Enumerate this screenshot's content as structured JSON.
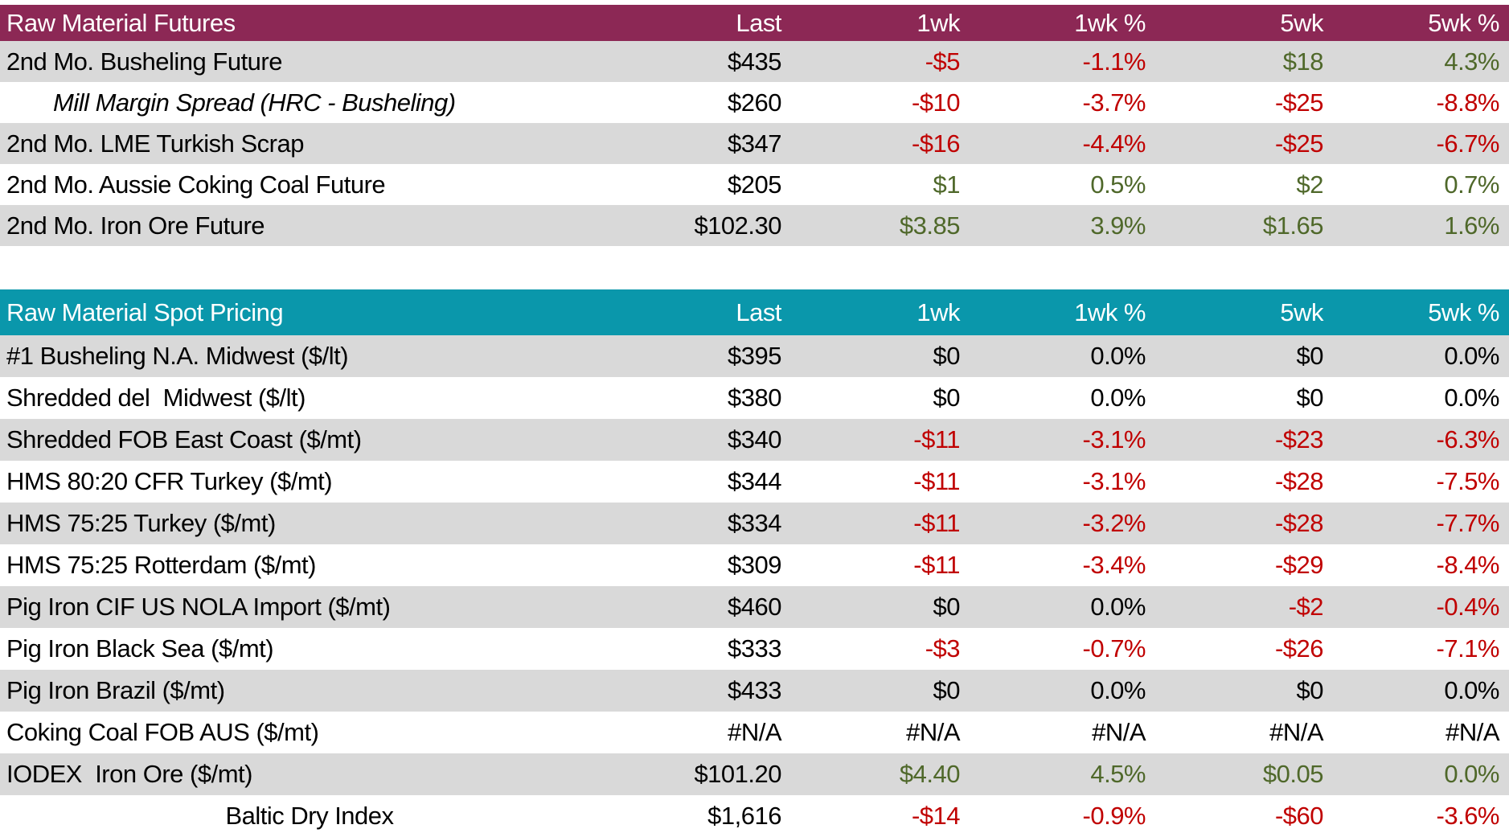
{
  "palette": {
    "futures_header_bg": "#8C2855",
    "spot_header_bg": "#0A97AB",
    "header_text": "#FFFFFF",
    "row_alt_bg": "#D9D9D9",
    "row_bg": "#FFFFFF",
    "negative": "#C00000",
    "positive": "#4F682A",
    "neutral": "#000000"
  },
  "columns": [
    "Last",
    "1wk",
    "1wk %",
    "5wk",
    "5wk %"
  ],
  "tables": [
    {
      "title": "Raw Material Futures",
      "header_bg": "#8C2855",
      "rows": [
        {
          "label": "2nd Mo. Busheling Future",
          "cells": [
            {
              "text": "$435",
              "color": "neutral"
            },
            {
              "text": "-$5",
              "color": "negative"
            },
            {
              "text": "-1.1%",
              "color": "negative"
            },
            {
              "text": "$18",
              "color": "positive"
            },
            {
              "text": "4.3%",
              "color": "positive"
            }
          ]
        },
        {
          "label": "Mill Margin Spread (HRC - Busheling)",
          "style": "italic-indent",
          "cells": [
            {
              "text": "$260",
              "color": "neutral"
            },
            {
              "text": "-$10",
              "color": "negative"
            },
            {
              "text": "-3.7%",
              "color": "negative"
            },
            {
              "text": "-$25",
              "color": "negative"
            },
            {
              "text": "-8.8%",
              "color": "negative"
            }
          ]
        },
        {
          "label": "2nd Mo. LME Turkish Scrap",
          "cells": [
            {
              "text": "$347",
              "color": "neutral"
            },
            {
              "text": "-$16",
              "color": "negative"
            },
            {
              "text": "-4.4%",
              "color": "negative"
            },
            {
              "text": "-$25",
              "color": "negative"
            },
            {
              "text": "-6.7%",
              "color": "negative"
            }
          ]
        },
        {
          "label": "2nd Mo. Aussie Coking Coal Future",
          "cells": [
            {
              "text": "$205",
              "color": "neutral"
            },
            {
              "text": "$1",
              "color": "positive"
            },
            {
              "text": "0.5%",
              "color": "positive"
            },
            {
              "text": "$2",
              "color": "positive"
            },
            {
              "text": "0.7%",
              "color": "positive"
            }
          ]
        },
        {
          "label": "2nd Mo. Iron Ore Future",
          "cells": [
            {
              "text": "$102.30",
              "color": "neutral"
            },
            {
              "text": "$3.85",
              "color": "positive"
            },
            {
              "text": "3.9%",
              "color": "positive"
            },
            {
              "text": "$1.65",
              "color": "positive"
            },
            {
              "text": "1.6%",
              "color": "positive"
            }
          ]
        }
      ]
    },
    {
      "title": "Raw Material Spot Pricing",
      "header_bg": "#0A97AB",
      "rows": [
        {
          "label": "#1 Busheling N.A. Midwest ($/lt)",
          "cells": [
            {
              "text": "$395",
              "color": "neutral"
            },
            {
              "text": "$0",
              "color": "neutral"
            },
            {
              "text": "0.0%",
              "color": "neutral"
            },
            {
              "text": "$0",
              "color": "neutral"
            },
            {
              "text": "0.0%",
              "color": "neutral"
            }
          ]
        },
        {
          "label": "Shredded del  Midwest ($/lt)",
          "cells": [
            {
              "text": "$380",
              "color": "neutral"
            },
            {
              "text": "$0",
              "color": "neutral"
            },
            {
              "text": "0.0%",
              "color": "neutral"
            },
            {
              "text": "$0",
              "color": "neutral"
            },
            {
              "text": "0.0%",
              "color": "neutral"
            }
          ]
        },
        {
          "label": "Shredded FOB East Coast ($/mt)",
          "cells": [
            {
              "text": "$340",
              "color": "neutral"
            },
            {
              "text": "-$11",
              "color": "negative"
            },
            {
              "text": "-3.1%",
              "color": "negative"
            },
            {
              "text": "-$23",
              "color": "negative"
            },
            {
              "text": "-6.3%",
              "color": "negative"
            }
          ]
        },
        {
          "label": "HMS 80:20 CFR Turkey ($/mt)",
          "cells": [
            {
              "text": "$344",
              "color": "neutral"
            },
            {
              "text": "-$11",
              "color": "negative"
            },
            {
              "text": "-3.1%",
              "color": "negative"
            },
            {
              "text": "-$28",
              "color": "negative"
            },
            {
              "text": "-7.5%",
              "color": "negative"
            }
          ]
        },
        {
          "label": "HMS 75:25 Turkey ($/mt)",
          "cells": [
            {
              "text": "$334",
              "color": "neutral"
            },
            {
              "text": "-$11",
              "color": "negative"
            },
            {
              "text": "-3.2%",
              "color": "negative"
            },
            {
              "text": "-$28",
              "color": "negative"
            },
            {
              "text": "-7.7%",
              "color": "negative"
            }
          ]
        },
        {
          "label": "HMS 75:25 Rotterdam ($/mt)",
          "cells": [
            {
              "text": "$309",
              "color": "neutral"
            },
            {
              "text": "-$11",
              "color": "negative"
            },
            {
              "text": "-3.4%",
              "color": "negative"
            },
            {
              "text": "-$29",
              "color": "negative"
            },
            {
              "text": "-8.4%",
              "color": "negative"
            }
          ]
        },
        {
          "label": "Pig Iron CIF US NOLA Import ($/mt)",
          "cells": [
            {
              "text": "$460",
              "color": "neutral"
            },
            {
              "text": "$0",
              "color": "neutral"
            },
            {
              "text": "0.0%",
              "color": "neutral"
            },
            {
              "text": "-$2",
              "color": "negative"
            },
            {
              "text": "-0.4%",
              "color": "negative"
            }
          ]
        },
        {
          "label": "Pig Iron Black Sea ($/mt)",
          "cells": [
            {
              "text": "$333",
              "color": "neutral"
            },
            {
              "text": "-$3",
              "color": "negative"
            },
            {
              "text": "-0.7%",
              "color": "negative"
            },
            {
              "text": "-$26",
              "color": "negative"
            },
            {
              "text": "-7.1%",
              "color": "negative"
            }
          ]
        },
        {
          "label": "Pig Iron Brazil ($/mt)",
          "cells": [
            {
              "text": "$433",
              "color": "neutral"
            },
            {
              "text": "$0",
              "color": "neutral"
            },
            {
              "text": "0.0%",
              "color": "neutral"
            },
            {
              "text": "$0",
              "color": "neutral"
            },
            {
              "text": "0.0%",
              "color": "neutral"
            }
          ]
        },
        {
          "label": "Coking Coal FOB AUS ($/mt)",
          "cells": [
            {
              "text": "#N/A",
              "color": "neutral"
            },
            {
              "text": "#N/A",
              "color": "neutral"
            },
            {
              "text": "#N/A",
              "color": "neutral"
            },
            {
              "text": "#N/A",
              "color": "neutral"
            },
            {
              "text": "#N/A",
              "color": "neutral"
            }
          ]
        },
        {
          "label": "IODEX  Iron Ore ($/mt)",
          "cells": [
            {
              "text": "$101.20",
              "color": "neutral"
            },
            {
              "text": "$4.40",
              "color": "positive"
            },
            {
              "text": "4.5%",
              "color": "positive"
            },
            {
              "text": "$0.05",
              "color": "positive"
            },
            {
              "text": "0.0%",
              "color": "positive"
            }
          ]
        },
        {
          "label": "Baltic Dry Index",
          "style": "center",
          "cells": [
            {
              "text": "$1,616",
              "color": "neutral"
            },
            {
              "text": "-$14",
              "color": "negative"
            },
            {
              "text": "-0.9%",
              "color": "negative"
            },
            {
              "text": "-$60",
              "color": "negative"
            },
            {
              "text": "-3.6%",
              "color": "negative"
            }
          ]
        }
      ]
    }
  ],
  "chart_data": [
    {
      "type": "table",
      "title": "Raw Material Futures",
      "columns": [
        "",
        "Last",
        "1wk",
        "1wk %",
        "5wk",
        "5wk %"
      ],
      "rows": [
        [
          "2nd Mo. Busheling Future",
          "$435",
          "-$5",
          "-1.1%",
          "$18",
          "4.3%"
        ],
        [
          "Mill Margin Spread (HRC - Busheling)",
          "$260",
          "-$10",
          "-3.7%",
          "-$25",
          "-8.8%"
        ],
        [
          "2nd Mo. LME Turkish Scrap",
          "$347",
          "-$16",
          "-4.4%",
          "-$25",
          "-6.7%"
        ],
        [
          "2nd Mo. Aussie Coking Coal Future",
          "$205",
          "$1",
          "0.5%",
          "$2",
          "0.7%"
        ],
        [
          "2nd Mo. Iron Ore Future",
          "$102.30",
          "$3.85",
          "3.9%",
          "$1.65",
          "1.6%"
        ]
      ]
    },
    {
      "type": "table",
      "title": "Raw Material Spot Pricing",
      "columns": [
        "",
        "Last",
        "1wk",
        "1wk %",
        "5wk",
        "5wk %"
      ],
      "rows": [
        [
          "#1 Busheling N.A. Midwest ($/lt)",
          "$395",
          "$0",
          "0.0%",
          "$0",
          "0.0%"
        ],
        [
          "Shredded del  Midwest ($/lt)",
          "$380",
          "$0",
          "0.0%",
          "$0",
          "0.0%"
        ],
        [
          "Shredded FOB East Coast ($/mt)",
          "$340",
          "-$11",
          "-3.1%",
          "-$23",
          "-6.3%"
        ],
        [
          "HMS 80:20 CFR Turkey ($/mt)",
          "$344",
          "-$11",
          "-3.1%",
          "-$28",
          "-7.5%"
        ],
        [
          "HMS 75:25 Turkey ($/mt)",
          "$334",
          "-$11",
          "-3.2%",
          "-$28",
          "-7.7%"
        ],
        [
          "HMS 75:25 Rotterdam ($/mt)",
          "$309",
          "-$11",
          "-3.4%",
          "-$29",
          "-8.4%"
        ],
        [
          "Pig Iron CIF US NOLA Import ($/mt)",
          "$460",
          "$0",
          "0.0%",
          "-$2",
          "-0.4%"
        ],
        [
          "Pig Iron Black Sea ($/mt)",
          "$333",
          "-$3",
          "-0.7%",
          "-$26",
          "-7.1%"
        ],
        [
          "Pig Iron Brazil ($/mt)",
          "$433",
          "$0",
          "0.0%",
          "$0",
          "0.0%"
        ],
        [
          "Coking Coal FOB AUS ($/mt)",
          "#N/A",
          "#N/A",
          "#N/A",
          "#N/A",
          "#N/A"
        ],
        [
          "IODEX  Iron Ore ($/mt)",
          "$101.20",
          "$4.40",
          "4.5%",
          "$0.05",
          "0.0%"
        ],
        [
          "Baltic Dry Index",
          "$1,616",
          "-$14",
          "-0.9%",
          "-$60",
          "-3.6%"
        ]
      ]
    }
  ]
}
